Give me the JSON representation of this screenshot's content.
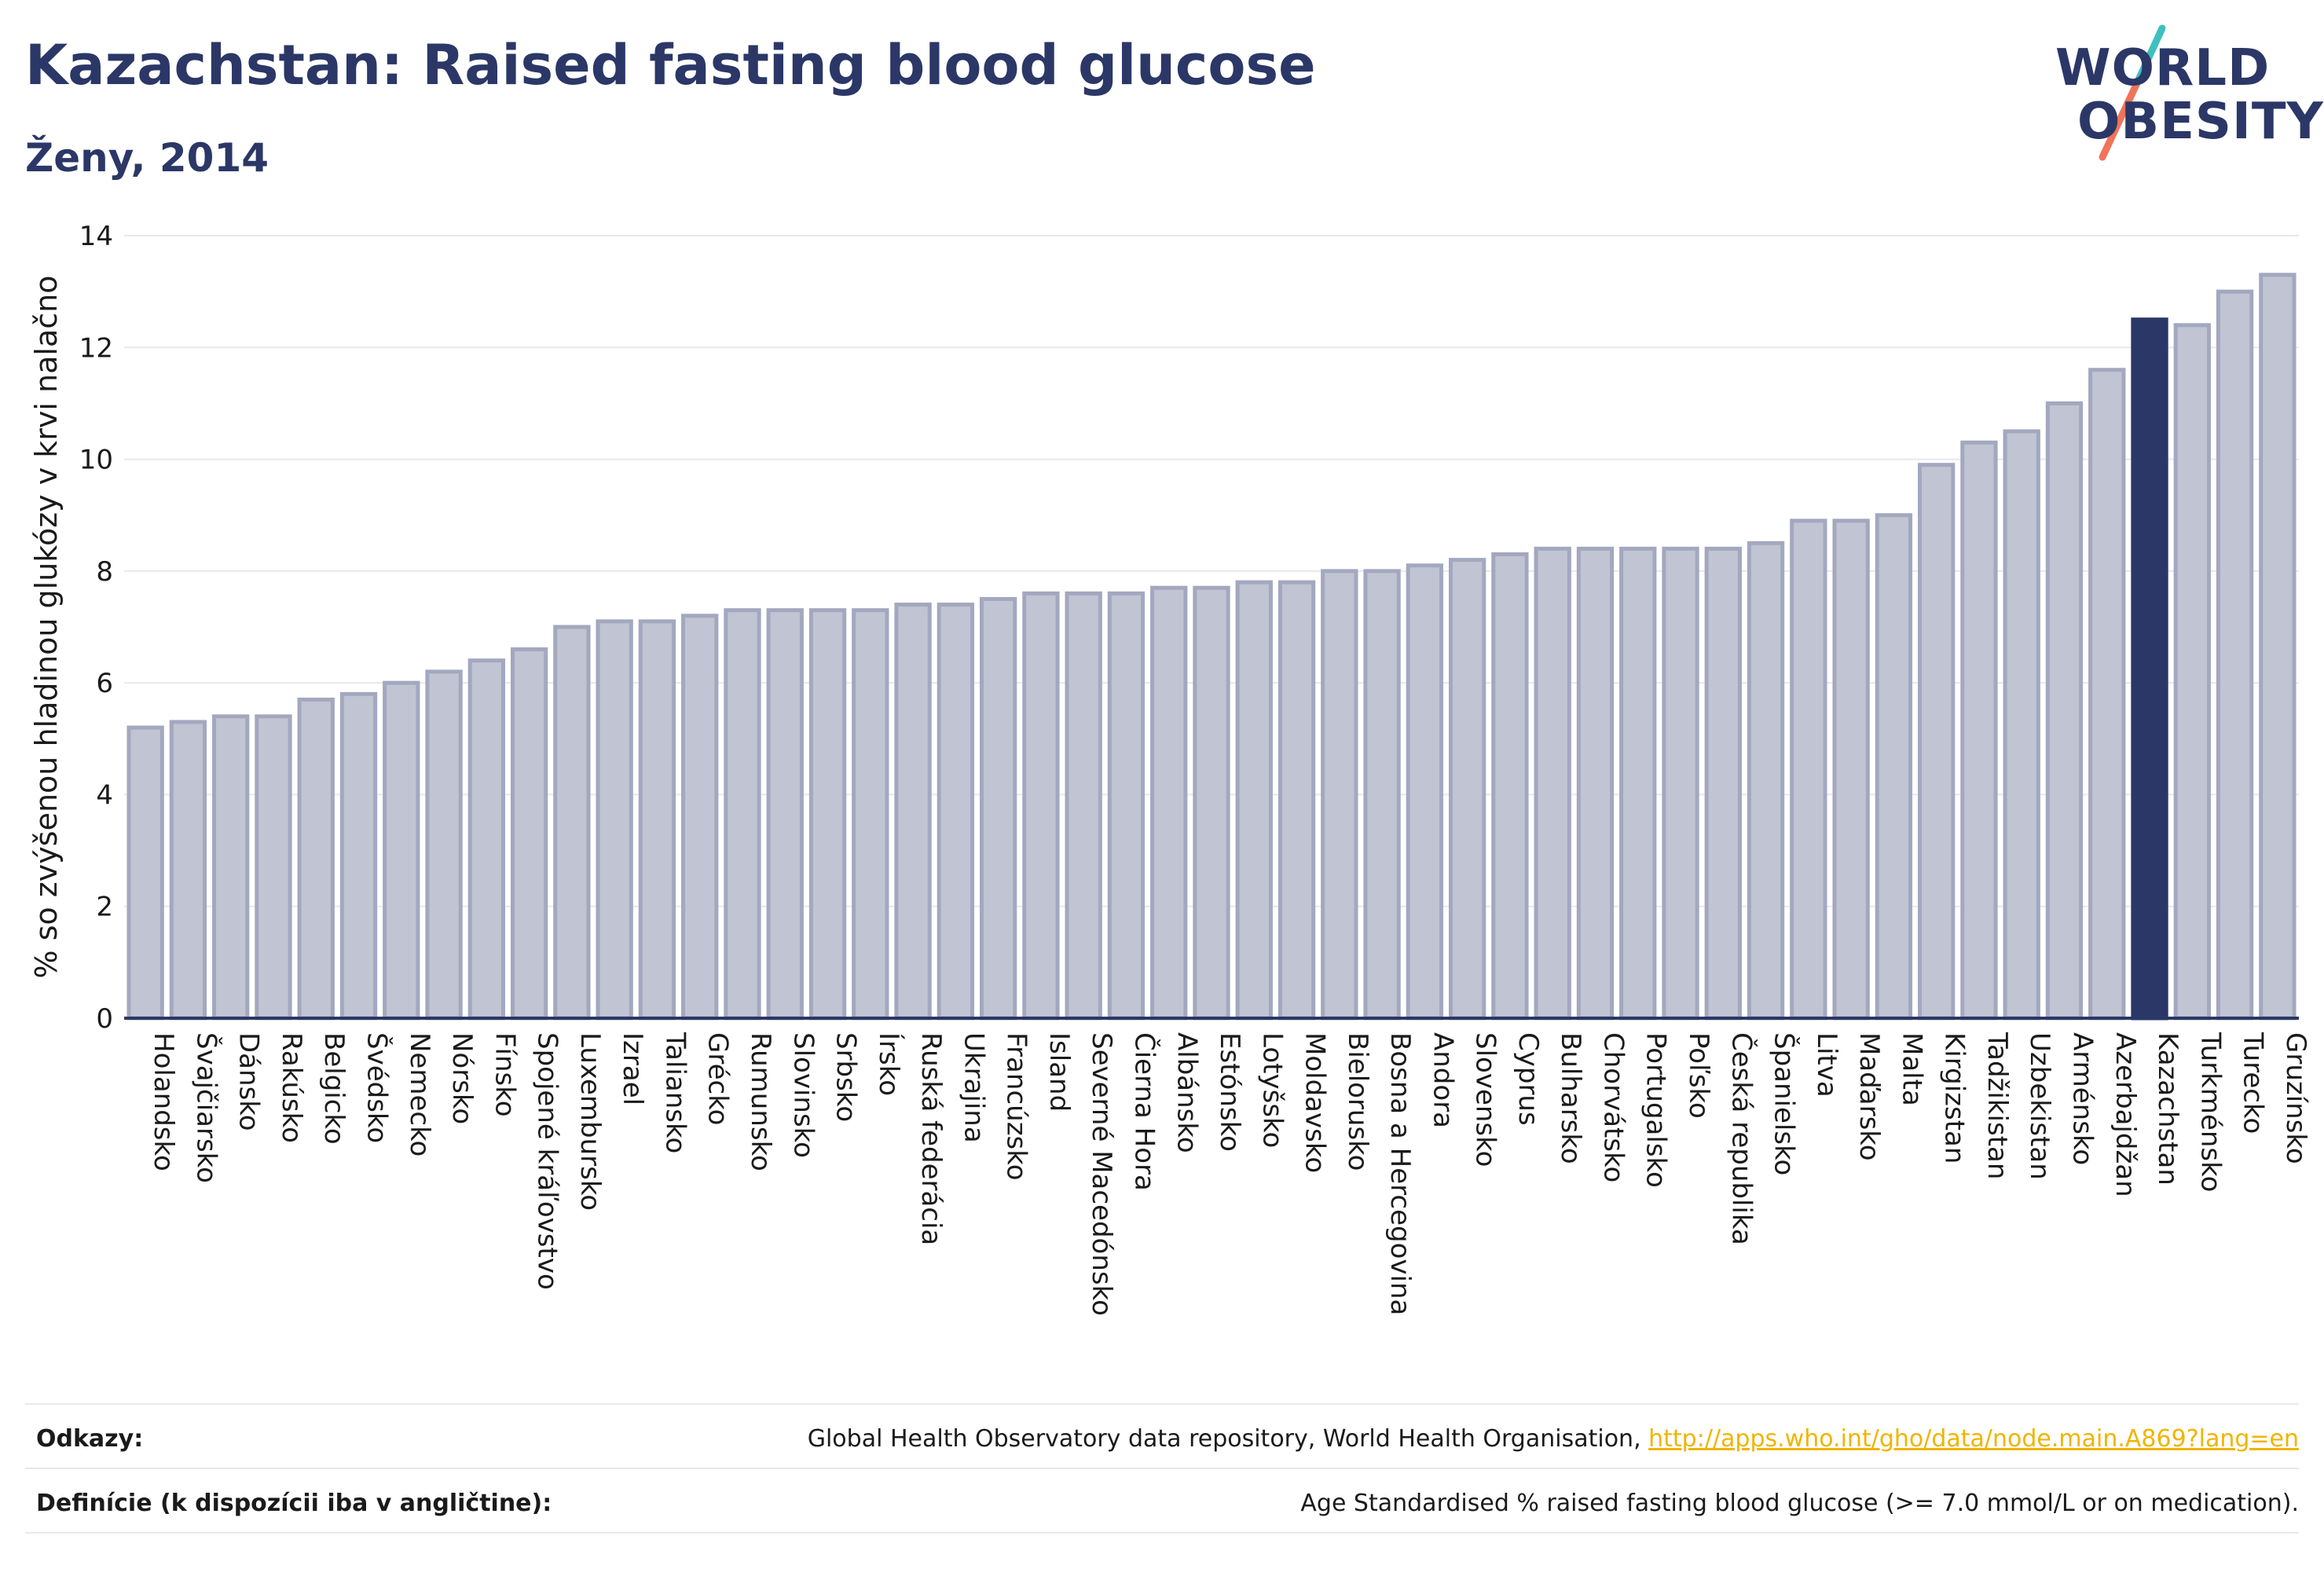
{
  "header": {
    "title": "Kazachstan: Raised fasting blood glucose",
    "subtitle": "Ženy, 2014"
  },
  "logo": {
    "line1": "WORLD",
    "line2": "OBESITY"
  },
  "colors": {
    "bar_fill": "#c0c4d3",
    "bar_stroke": "#a3a8bf",
    "highlight": "#2b3766",
    "text": "#2b3766",
    "grid": "#e8e8ee",
    "link": "#f0b400"
  },
  "chart_data": {
    "type": "bar",
    "ylabel": "% so zvýšenou hladinou glukózy v krvi nalačno",
    "ylim": [
      0,
      14
    ],
    "yticks": [
      0,
      2,
      4,
      6,
      8,
      10,
      12,
      14
    ],
    "grid": true,
    "highlight": "Kazachstan",
    "categories": [
      "Holandsko",
      "Švajčiarsko",
      "Dánsko",
      "Rakúsko",
      "Belgicko",
      "Švédsko",
      "Nemecko",
      "Nórsko",
      "Fínsko",
      "Spojené kráľovstvo",
      "Luxembursko",
      "Izrael",
      "Taliansko",
      "Grécko",
      "Rumunsko",
      "Slovinsko",
      "Srbsko",
      "Írsko",
      "Ruská federácia",
      "Ukrajina",
      "Francúzsko",
      "Island",
      "Severné Macedónsko",
      "Čierna Hora",
      "Albánsko",
      "Estónsko",
      "Lotyšsko",
      "Moldavsko",
      "Bielorusko",
      "Bosna a Hercegovina",
      "Andora",
      "Slovensko",
      "Cyprus",
      "Bulharsko",
      "Chorvátsko",
      "Portugalsko",
      "Poľsko",
      "Česká republika",
      "Španielsko",
      "Litva",
      "Maďarsko",
      "Malta",
      "Kirgizstan",
      "Tadžikistan",
      "Uzbekistan",
      "Arménsko",
      "Azerbajdžan",
      "Kazachstan",
      "Turkménsko",
      "Turecko",
      "Gruzínsko"
    ],
    "values": [
      5.2,
      5.3,
      5.4,
      5.4,
      5.7,
      5.8,
      6.0,
      6.2,
      6.4,
      6.6,
      7.0,
      7.1,
      7.1,
      7.2,
      7.3,
      7.3,
      7.3,
      7.3,
      7.4,
      7.4,
      7.5,
      7.6,
      7.6,
      7.6,
      7.7,
      7.7,
      7.8,
      7.8,
      8.0,
      8.0,
      8.1,
      8.2,
      8.3,
      8.4,
      8.4,
      8.4,
      8.4,
      8.4,
      8.5,
      8.9,
      8.9,
      9.0,
      9.9,
      10.3,
      10.5,
      11.0,
      11.6,
      12.5,
      12.4,
      13.0,
      13.3
    ]
  },
  "footer": {
    "references_label": "Odkazy:",
    "references_text": "Global Health Observatory data repository, World Health Organisation, ",
    "references_link": "http://apps.who.int/gho/data/node.main.A869?lang=en",
    "definitions_label": "Definície (k dispozícii iba v angličtine):",
    "definitions_text": "Age Standardised % raised fasting blood glucose (>= 7.0 mmol/L or on medication)."
  }
}
